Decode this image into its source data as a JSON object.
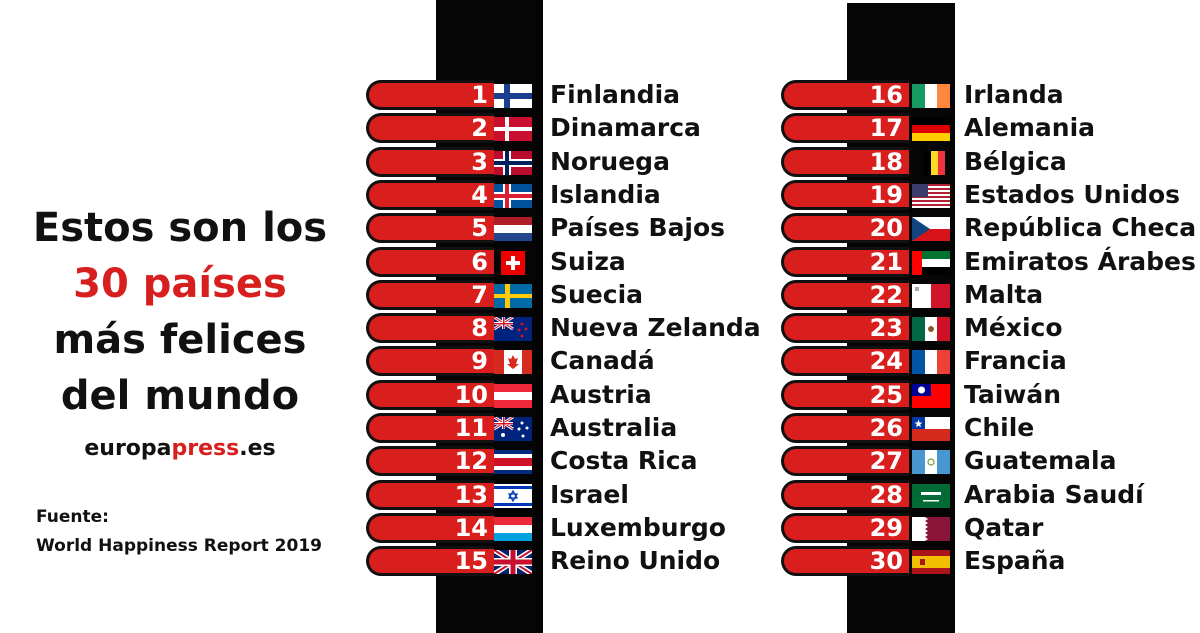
{
  "title": {
    "line1": "Estos son los",
    "line2": "30 países",
    "line3": "más felices",
    "line4": "del mundo"
  },
  "brand": {
    "part1": "europa",
    "part2": "press",
    "part3": ".es"
  },
  "source": {
    "label": "Fuente:",
    "text": "World Happiness Report 2019"
  },
  "colors": {
    "accent": "#d91e1e",
    "dark": "#050505"
  },
  "countries": [
    {
      "rank": "1",
      "name": "Finlandia",
      "flag": "finland-flag"
    },
    {
      "rank": "2",
      "name": "Dinamarca",
      "flag": "denmark-flag"
    },
    {
      "rank": "3",
      "name": "Noruega",
      "flag": "norway-flag"
    },
    {
      "rank": "4",
      "name": "Islandia",
      "flag": "iceland-flag"
    },
    {
      "rank": "5",
      "name": "Países Bajos",
      "flag": "netherlands-flag"
    },
    {
      "rank": "6",
      "name": "Suiza",
      "flag": "switzerland-flag"
    },
    {
      "rank": "7",
      "name": "Suecia",
      "flag": "sweden-flag"
    },
    {
      "rank": "8",
      "name": "Nueva Zelanda",
      "flag": "new-zealand-flag"
    },
    {
      "rank": "9",
      "name": "Canadá",
      "flag": "canada-flag"
    },
    {
      "rank": "10",
      "name": "Austria",
      "flag": "austria-flag"
    },
    {
      "rank": "11",
      "name": "Australia",
      "flag": "australia-flag"
    },
    {
      "rank": "12",
      "name": "Costa Rica",
      "flag": "costa-rica-flag"
    },
    {
      "rank": "13",
      "name": "Israel",
      "flag": "israel-flag"
    },
    {
      "rank": "14",
      "name": "Luxemburgo",
      "flag": "luxembourg-flag"
    },
    {
      "rank": "15",
      "name": "Reino Unido",
      "flag": "united-kingdom-flag"
    },
    {
      "rank": "16",
      "name": "Irlanda",
      "flag": "ireland-flag"
    },
    {
      "rank": "17",
      "name": "Alemania",
      "flag": "germany-flag"
    },
    {
      "rank": "18",
      "name": "Bélgica",
      "flag": "belgium-flag"
    },
    {
      "rank": "19",
      "name": "Estados Unidos",
      "flag": "united-states-flag"
    },
    {
      "rank": "20",
      "name": "República Checa",
      "flag": "czech-republic-flag"
    },
    {
      "rank": "21",
      "name": "Emiratos Árabes",
      "flag": "uae-flag"
    },
    {
      "rank": "22",
      "name": "Malta",
      "flag": "malta-flag"
    },
    {
      "rank": "23",
      "name": "México",
      "flag": "mexico-flag"
    },
    {
      "rank": "24",
      "name": "Francia",
      "flag": "france-flag"
    },
    {
      "rank": "25",
      "name": "Taiwán",
      "flag": "taiwan-flag"
    },
    {
      "rank": "26",
      "name": "Chile",
      "flag": "chile-flag"
    },
    {
      "rank": "27",
      "name": "Guatemala",
      "flag": "guatemala-flag"
    },
    {
      "rank": "28",
      "name": "Arabia Saudí",
      "flag": "saudi-arabia-flag"
    },
    {
      "rank": "29",
      "name": "Qatar",
      "flag": "qatar-flag"
    },
    {
      "rank": "30",
      "name": "España",
      "flag": "spain-flag"
    }
  ]
}
